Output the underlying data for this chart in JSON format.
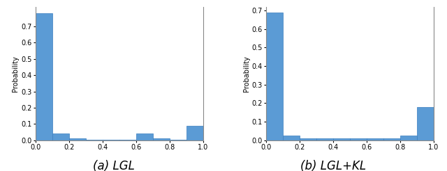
{
  "lgl_values": [
    0.78,
    0.04,
    0.01,
    0.005,
    0.005,
    0.005,
    0.04,
    0.01,
    0.005,
    0.09
  ],
  "lgl_kl_values": [
    0.69,
    0.025,
    0.01,
    0.01,
    0.01,
    0.01,
    0.01,
    0.01,
    0.025,
    0.18
  ],
  "bin_edges": [
    0.0,
    0.1,
    0.2,
    0.3,
    0.4,
    0.5,
    0.6,
    0.7,
    0.8,
    0.9,
    1.0
  ],
  "bar_color": "#5b9bd5",
  "bar_edge_color": "#3a7ebf",
  "ylabel": "Probability",
  "title_a": "(a) LGL",
  "title_b": "(b) LGL+KL",
  "ylim_a": [
    0,
    0.82
  ],
  "ylim_b": [
    0,
    0.72
  ],
  "yticks_a": [
    0.0,
    0.1,
    0.2,
    0.3,
    0.4,
    0.5,
    0.6,
    0.7
  ],
  "yticks_b": [
    0.0,
    0.1,
    0.2,
    0.3,
    0.4,
    0.5,
    0.6,
    0.7
  ],
  "xticks": [
    0.0,
    0.2,
    0.4,
    0.6,
    0.8,
    1.0
  ],
  "title_fontsize": 12,
  "label_fontsize": 7,
  "tick_fontsize": 7,
  "background_color": "#ffffff"
}
